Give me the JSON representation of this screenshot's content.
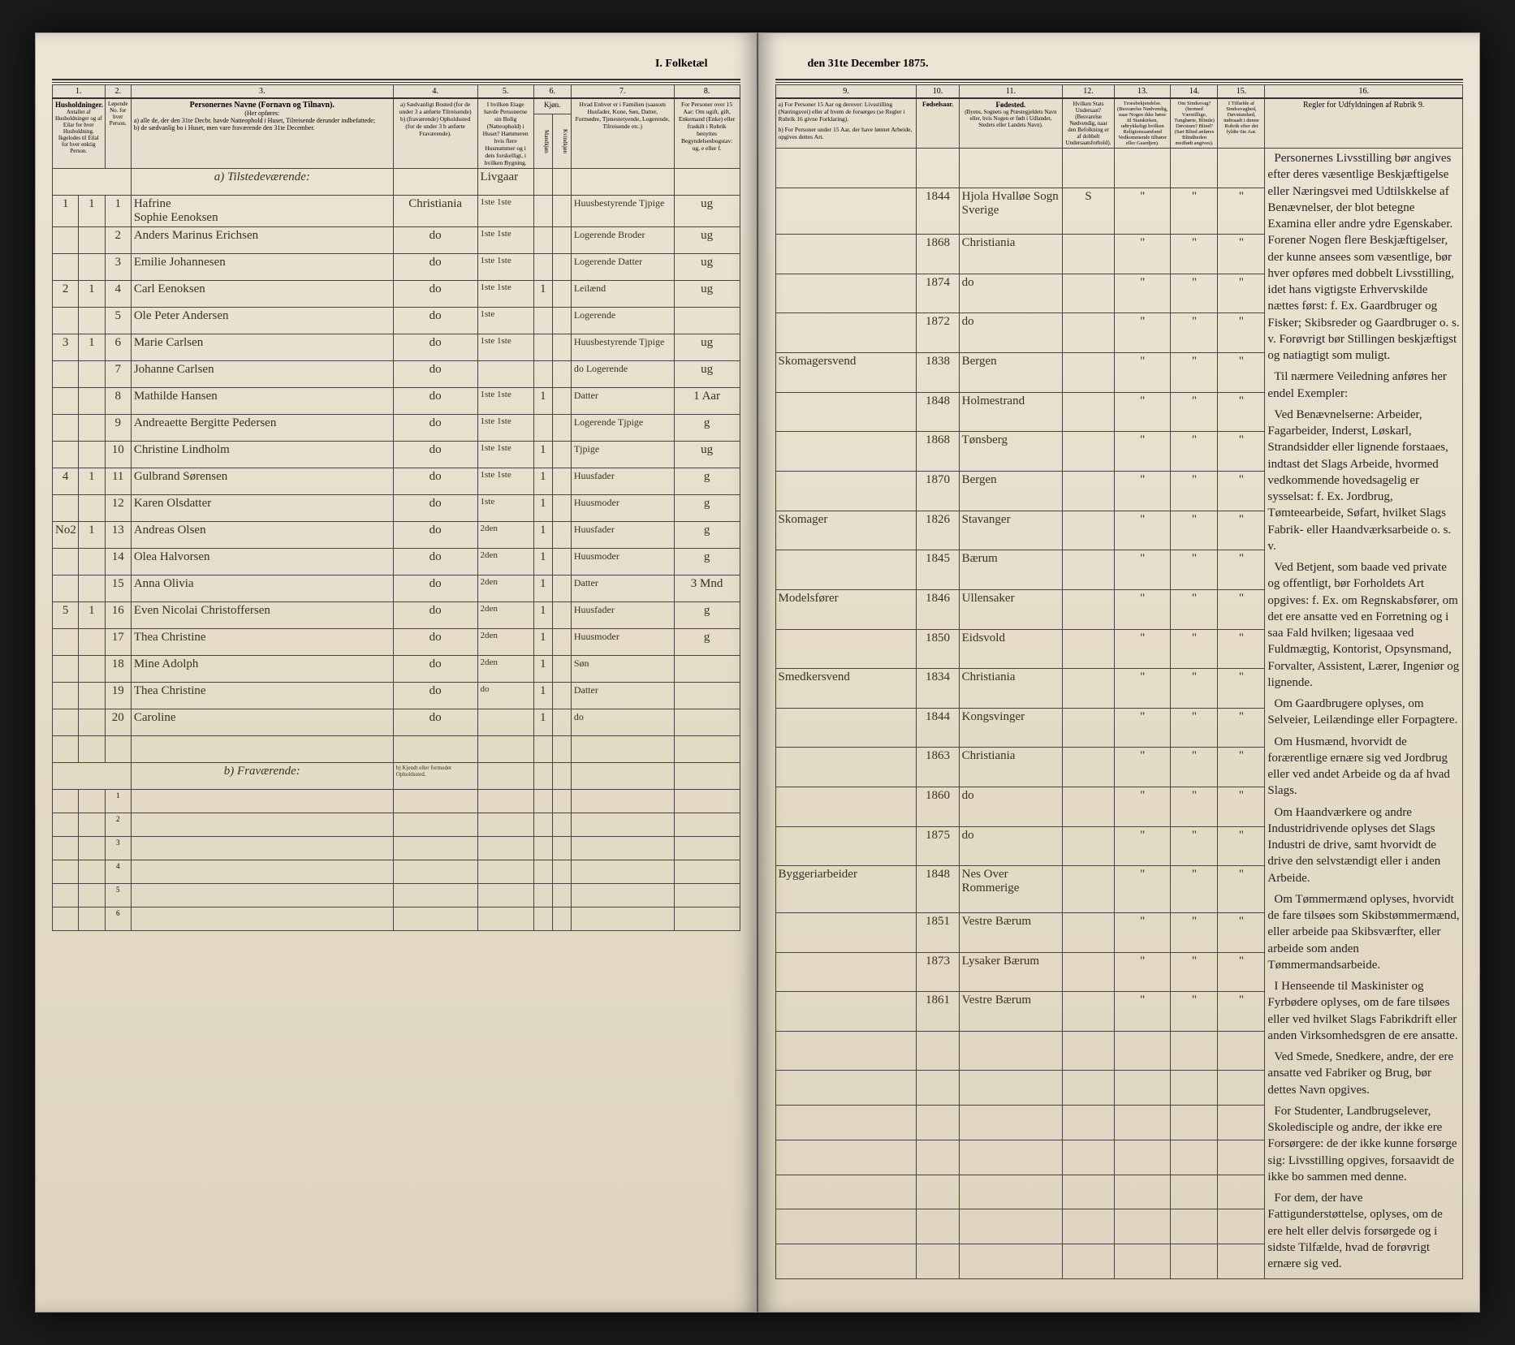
{
  "title_left": "I. Folketæl",
  "title_right": "den 31te December 1875.",
  "cols_left": {
    "c1": "1.",
    "c2": "2.",
    "c3": "3.",
    "c4": "4.",
    "c5": "5.",
    "c6": "6.",
    "c7": "7.",
    "c8": "8."
  },
  "cols_right": {
    "c9": "9.",
    "c10": "10.",
    "c11": "11.",
    "c12": "12.",
    "c13": "13.",
    "c14": "14.",
    "c15": "15.",
    "c16": "16."
  },
  "headers_left": {
    "h1": "Husholdninger.",
    "h1a": "Antallet af Husholdninger og af Eilar for hver Husholdning. Ikgelodes til Eilal for hver enktig Person.",
    "h1b": "Løpende No. for hver Person.",
    "h3_title": "Personernes Navne (Fornavn og Tilnavn).",
    "h3_sub": "(Her opføres:",
    "h3_a": "a) alle de, der den 31te Decbr. havde Natteophold i Huset, Tilreisende derunder indbefattede;",
    "h3_b": "b) de sædvanlig bo i Huset, men vare fraværende den 31te December.",
    "h4": "a) Sædvanligt Bosted (for de under 3 a anførte Tilreisende) b) (fraværende) Opholdssted (for de under 3 b anførte Fraværende).",
    "h5": "I hvilken Etage havde Personerne sin Bolig (Natteophold) i Huset? Hammeren hvis flere Husnummer og i dets forskelligt, i hvilken Bygning.",
    "h6": "Kjøn.",
    "h6a": "Mandkjøn",
    "h6b": "Kvindkjøn",
    "h7": "Hvad Enhver er i Familien (saasom Husfader, Kone, Søn, Datter, Formødre, Tjenestetyende, Logerende, Tilreisende etc.)",
    "h8": "For Personer over 15 Aar: Om ugift, gift, Enkemand (Enke) eller fraskilt i Rubrik benyttes Begyndelsesbogstav: ug, e eller f."
  },
  "headers_right": {
    "h9a": "a) For Personer 15 Aar og derover: Livsstilling (Næringsvei) eller af hvem de forsørges (se Regler i Rubrik 16 givne Forklaring).",
    "h9b": "b) For Personer under 15 Aar, der have lønnet Arbeide, opgives dettes Art.",
    "h10": "Fødselsaar.",
    "h11_title": "Fødested.",
    "h11_sub": "(Byens, Sognets og Præstegjeldets Navn eller, hvis Nogen er født i Udlandet, Stedets eller Landets Navn).",
    "h12": "Hvilken Stats Undersaat? (Besvarelse Nødvendig, naar den Befolkning er af dobbelt Undersaatsforhold).",
    "h13": "Troesbekjendelse. (Besvarelse Nødvendig, naar Nogen ikke hører til Statskirken, udtrykkeligt hvilken Religionssamfund Vedkommende tilhører eller Gaardjen).",
    "h14": "Om Sindssvag? (hermed Værstillige, Tunghørte, Blinde) Døvstum? Blind? (Sæt Blind anføres Blindheden medfødt angives).",
    "h15": "I Tilfælde af Sindssvaghed, Døvstumhed, indtraadt i denne Rubrik efter det fyldte 6te Aar.",
    "h16": "Regler for Udfyldningen af Rubrik 9."
  },
  "section_a": "a) Tilstedeværende:",
  "section_b": "b) Fraværende:",
  "rows": [
    {
      "hh": "1",
      "fam": "1",
      "no": "1",
      "name": "Hafrine",
      "name2": "Sophie Eenoksen",
      "c4": "Christiania",
      "c5": "1ste 1ste",
      "c6": "",
      "c7": "Huusbestyrende Tjpige",
      "c8": "ug",
      "c9": "",
      "c10": "1844",
      "c11": "Hjola Hvalløe Sogn Sverige",
      "c12": "S",
      "c13": "\"",
      "c14": "\"",
      "c15": "\""
    },
    {
      "hh": "",
      "fam": "",
      "no": "2",
      "name": "Anders Marinus Erichsen",
      "c4": "do",
      "c5": "1ste 1ste",
      "c6": "",
      "c7": "Logerende Broder",
      "c8": "ug",
      "c9": "",
      "c10": "1868",
      "c11": "Christiania",
      "c12": "",
      "c13": "\"",
      "c14": "\"",
      "c15": "\""
    },
    {
      "hh": "",
      "fam": "",
      "no": "3",
      "name": "Emilie Johannesen",
      "c4": "do",
      "c5": "1ste 1ste",
      "c6": "",
      "c7": "Logerende Datter",
      "c8": "ug",
      "c9": "",
      "c10": "1874",
      "c11": "do",
      "c12": "",
      "c13": "\"",
      "c14": "\"",
      "c15": "\""
    },
    {
      "hh": "2",
      "fam": "1",
      "no": "4",
      "name": "Carl Eenoksen",
      "c4": "do",
      "c5": "1ste 1ste",
      "c6": "1",
      "c7": "Leilænd",
      "c8": "ug",
      "c9": "",
      "c10": "1872",
      "c11": "do",
      "c12": "",
      "c13": "\"",
      "c14": "\"",
      "c15": "\""
    },
    {
      "hh": "",
      "fam": "",
      "no": "5",
      "name": "Ole Peter Andersen",
      "c4": "do",
      "c5": "1ste",
      "c6": "",
      "c7": "Logerende",
      "c8": "",
      "c9": "Skomagersvend",
      "c10": "1838",
      "c11": "Bergen",
      "c12": "",
      "c13": "\"",
      "c14": "\"",
      "c15": "\""
    },
    {
      "hh": "3",
      "fam": "1",
      "no": "6",
      "name": "Marie Carlsen",
      "c4": "do",
      "c5": "1ste 1ste",
      "c6": "",
      "c7": "Huusbestyrende Tjpige",
      "c8": "ug",
      "c9": "",
      "c10": "1848",
      "c11": "Holmestrand",
      "c12": "",
      "c13": "\"",
      "c14": "\"",
      "c15": "\""
    },
    {
      "hh": "",
      "fam": "",
      "no": "7",
      "name": "Johanne Carlsen",
      "c4": "do",
      "c5": "",
      "c6": "",
      "c7": "do Logerende",
      "c8": "ug",
      "c9": "",
      "c10": "1868",
      "c11": "Tønsberg",
      "c12": "",
      "c13": "\"",
      "c14": "\"",
      "c15": "\""
    },
    {
      "hh": "",
      "fam": "",
      "no": "8",
      "name": "Mathilde Hansen",
      "c4": "do",
      "c5": "1ste 1ste",
      "c6": "1",
      "c7": "Datter",
      "c8": "1 Aar",
      "c9": "",
      "c10": "1870",
      "c11": "Bergen",
      "c12": "",
      "c13": "\"",
      "c14": "\"",
      "c15": "\""
    },
    {
      "hh": "",
      "fam": "",
      "no": "9",
      "name": "Andreaette Bergitte Pedersen",
      "c4": "do",
      "c5": "1ste 1ste",
      "c6": "",
      "c7": "Logerende Tjpige",
      "c8": "g",
      "c9": "Skomager",
      "c10": "1826",
      "c11": "Stavanger",
      "c12": "",
      "c13": "\"",
      "c14": "\"",
      "c15": "\""
    },
    {
      "hh": "",
      "fam": "",
      "no": "10",
      "name": "Christine Lindholm",
      "c4": "do",
      "c5": "1ste 1ste",
      "c6": "1",
      "c7": "Tjpige",
      "c8": "ug",
      "c9": "",
      "c10": "1845",
      "c11": "Bærum",
      "c12": "",
      "c13": "\"",
      "c14": "\"",
      "c15": "\""
    },
    {
      "hh": "4",
      "fam": "1",
      "no": "11",
      "name": "Gulbrand Sørensen",
      "c4": "do",
      "c5": "1ste 1ste",
      "c6": "1",
      "c7": "Huusfader",
      "c8": "g",
      "c9": "Modelsfører",
      "c10": "1846",
      "c11": "Ullensaker",
      "c12": "",
      "c13": "\"",
      "c14": "\"",
      "c15": "\""
    },
    {
      "hh": "",
      "fam": "",
      "no": "12",
      "name": "Karen Olsdatter",
      "c4": "do",
      "c5": "1ste",
      "c6": "1",
      "c7": "Huusmoder",
      "c8": "g",
      "c9": "",
      "c10": "1850",
      "c11": "Eidsvold",
      "c12": "",
      "c13": "\"",
      "c14": "\"",
      "c15": "\""
    },
    {
      "hh": "No2",
      "fam": "1",
      "no": "13",
      "name": "Andreas Olsen",
      "c4": "do",
      "c5": "2den",
      "c6": "1",
      "c7": "Huusfader",
      "c8": "g",
      "c9": "Smedkersvend",
      "c10": "1834",
      "c11": "Christiania",
      "c12": "",
      "c13": "\"",
      "c14": "\"",
      "c15": "\""
    },
    {
      "hh": "",
      "fam": "",
      "no": "14",
      "name": "Olea Halvorsen",
      "c4": "do",
      "c5": "2den",
      "c6": "1",
      "c7": "Huusmoder",
      "c8": "g",
      "c9": "",
      "c10": "1844",
      "c11": "Kongsvinger",
      "c12": "",
      "c13": "\"",
      "c14": "\"",
      "c15": "\""
    },
    {
      "hh": "",
      "fam": "",
      "no": "15",
      "name": "Anna Olivia",
      "c4": "do",
      "c5": "2den",
      "c6": "1",
      "c7": "Datter",
      "c8": "3 Mnd",
      "c9": "",
      "c10": "1863",
      "c11": "Christiania",
      "c12": "",
      "c13": "\"",
      "c14": "\"",
      "c15": "\""
    },
    {
      "hh": "5",
      "fam": "1",
      "no": "16",
      "name": "Even Nicolai Christoffersen",
      "c4": "do",
      "c5": "2den",
      "c6": "1",
      "c7": "Huusfader",
      "c8": "g",
      "c9": "",
      "c10": "1860",
      "c11": "do",
      "c12": "",
      "c13": "\"",
      "c14": "\"",
      "c15": "\""
    },
    {
      "hh": "",
      "fam": "",
      "no": "17",
      "name": "Thea Christine",
      "c4": "do",
      "c5": "2den",
      "c6": "1",
      "c7": "Huusmoder",
      "c8": "g",
      "c9": "",
      "c10": "1875",
      "c11": "do",
      "c12": "",
      "c13": "\"",
      "c14": "\"",
      "c15": "\""
    },
    {
      "hh": "",
      "fam": "",
      "no": "18",
      "name": "Mine Adolph",
      "c4": "do",
      "c5": "2den",
      "c6": "1",
      "c7": "Søn",
      "c8": "",
      "c9": "Byggeriarbeider",
      "c10": "1848",
      "c11": "Nes Over Rommerige",
      "c12": "",
      "c13": "\"",
      "c14": "\"",
      "c15": "\""
    },
    {
      "hh": "",
      "fam": "",
      "no": "19",
      "name": "Thea Christine",
      "c4": "do",
      "c5": "do",
      "c6": "1",
      "c7": "Datter",
      "c8": "",
      "c9": "",
      "c10": "1851",
      "c11": "Vestre Bærum",
      "c12": "",
      "c13": "\"",
      "c14": "\"",
      "c15": "\""
    },
    {
      "hh": "",
      "fam": "",
      "no": "20",
      "name": "Caroline",
      "c4": "do",
      "c5": "",
      "c6": "1",
      "c7": "do",
      "c8": "",
      "c9": "",
      "c10": "1873",
      "c11": "Lysaker Bærum",
      "c12": "",
      "c13": "\"",
      "c14": "\"",
      "c15": "\""
    },
    {
      "hh": "",
      "fam": "",
      "no": "",
      "name": "",
      "c4": "",
      "c5": "",
      "c6": "",
      "c7": "",
      "c8": "",
      "c9": "",
      "c10": "1861",
      "c11": "Vestre Bærum",
      "c12": "",
      "c13": "\"",
      "c14": "\"",
      "c15": "\""
    }
  ],
  "note_b_left": "b) Kjendt eller formodet Opholdssted.",
  "rules": [
    "Personernes Livsstilling bør angives efter deres væsentlige Beskjæftigelse eller Næringsvei med Udtilskkelse af Benævnelser, der blot betegne Examina eller andre ydre Egenskaber. Forener Nogen flere Beskjæftigelser, der kunne ansees som væsentlige, bør hver opføres med dobbelt Livsstilling, idet hans vigtigste Erhvervskilde nættes først: f. Ex. Gaardbruger og Fisker; Skibsreder og Gaardbruger o. s. v. Forøvrigt bør Stillingen beskjæftigst og natiagtigt som muligt.",
    "Til nærmere Veiledning anføres her endel Exempler:",
    "Ved Benævnelserne: Arbeider, Fagarbeider, Inderst, Løskarl, Strandsidder eller lignende forstaaes, indtast det Slags Arbeide, hvormed vedkommende hovedsagelig er sysselsat: f. Ex. Jordbrug, Tømteearbeide, Søfart, hvilket Slags Fabrik- eller Haandværksarbeide o. s. v.",
    "Ved Betjent, som baade ved private og offentligt, bør Forholdets Art opgives: f. Ex. om Regnskabsfører, om det ere ansatte ved en Forretning og i saa Fald hvilken; ligesaaa ved Fuldmægtig, Kontorist, Opsynsmand, Forvalter, Assistent, Lærer, Ingeniør og lignende.",
    "Om Gaardbrugere oplyses, om Selveier, Leilændinge eller Forpagtere.",
    "Om Husmænd, hvorvidt de forærentlige ernære sig ved Jordbrug eller ved andet Arbeide og da af hvad Slags.",
    "Om Haandværkere og andre Industridrivende oplyses det Slags Industri de drive, samt hvorvidt de drive den selvstændigt eller i anden Arbeide.",
    "Om Tømmermænd oplyses, hvorvidt de fare tilsøes som Skibstømmermænd, eller arbeide paa Skibsværfter, eller arbeide som anden Tømmermandsarbeide.",
    "I Henseende til Maskinister og Fyrbødere oplyses, om de fare tilsøes eller ved hvilket Slags Fabrikdrift eller anden Virksomhedsgren de ere ansatte.",
    "Ved Smede, Snedkere, andre, der ere ansatte ved Fabriker og Brug, bør dettes Navn opgives.",
    "For Studenter, Landbrugselever, Skoledisciple og andre, der ikke ere Forsørgere: de der ikke kunne forsørge sig: Livsstilling opgives, forsaavidt de ikke bo sammen med denne.",
    "For dem, der have Fattigunderstøttelse, oplyses, om de ere helt eller delvis forsørgede og i sidste Tilfælde, hvad de forøvrigt ernære sig ved."
  ]
}
